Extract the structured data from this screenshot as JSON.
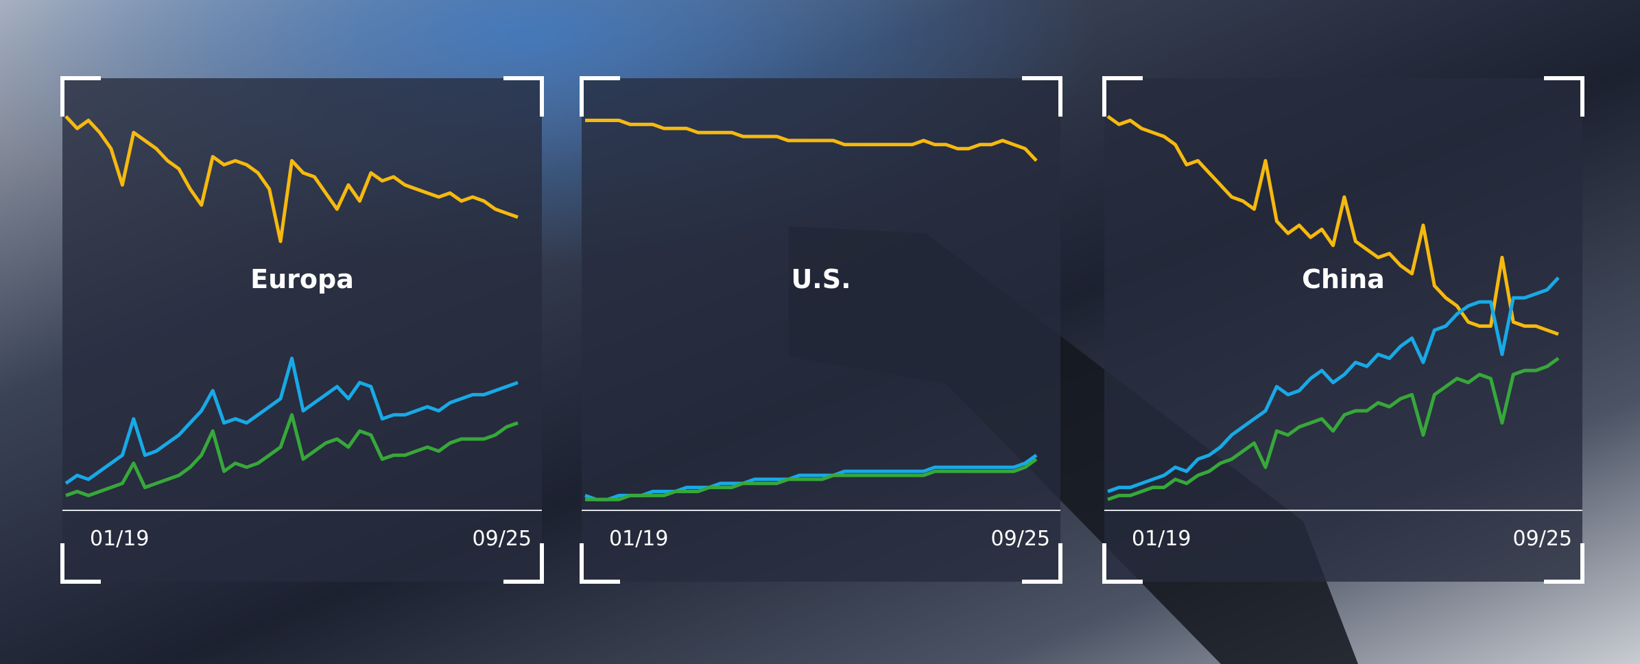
{
  "chart_data": [
    {
      "type": "line",
      "title": "Europa",
      "categories": [
        "01/19",
        null,
        null,
        null,
        null,
        null,
        null,
        null,
        null,
        null,
        null,
        null,
        null,
        null,
        null,
        null,
        null,
        null,
        null,
        null,
        null,
        null,
        null,
        null,
        null,
        null,
        null,
        null,
        null,
        null,
        null,
        null,
        null,
        null,
        null,
        null,
        null,
        null,
        null,
        null,
        "09/25"
      ],
      "ylim": [
        0,
        100
      ],
      "series": [
        {
          "color": "#f6b90f",
          "values": [
            97,
            94,
            96,
            93,
            89,
            80,
            93,
            91,
            89,
            86,
            84,
            79,
            75,
            87,
            85,
            86,
            85,
            83,
            79,
            66,
            86,
            83,
            82,
            78,
            74,
            80,
            76,
            83,
            81,
            82,
            80,
            79,
            78,
            77,
            78,
            76,
            77,
            76,
            74,
            73,
            72
          ]
        },
        {
          "color": "#18a9e6",
          "values": [
            6,
            8,
            7,
            9,
            11,
            13,
            22,
            13,
            14,
            16,
            18,
            21,
            24,
            29,
            21,
            22,
            21,
            23,
            25,
            27,
            37,
            24,
            26,
            28,
            30,
            27,
            31,
            30,
            22,
            23,
            23,
            24,
            25,
            24,
            26,
            27,
            28,
            28,
            29,
            30,
            31
          ]
        },
        {
          "color": "#37a83a",
          "values": [
            3,
            4,
            3,
            4,
            5,
            6,
            11,
            5,
            6,
            7,
            8,
            10,
            13,
            19,
            9,
            11,
            10,
            11,
            13,
            15,
            23,
            12,
            14,
            16,
            17,
            15,
            19,
            18,
            12,
            13,
            13,
            14,
            15,
            14,
            16,
            17,
            17,
            17,
            18,
            20,
            21
          ]
        }
      ]
    },
    {
      "type": "line",
      "title": "U.S.",
      "categories": [
        "01/19",
        null,
        null,
        null,
        null,
        null,
        null,
        null,
        null,
        null,
        null,
        null,
        null,
        null,
        null,
        null,
        null,
        null,
        null,
        null,
        null,
        null,
        null,
        null,
        null,
        null,
        null,
        null,
        null,
        null,
        null,
        null,
        null,
        null,
        null,
        null,
        null,
        null,
        null,
        null,
        "09/25"
      ],
      "ylim": [
        0,
        100
      ],
      "series": [
        {
          "color": "#f6b90f",
          "values": [
            96,
            96,
            96,
            96,
            95,
            95,
            95,
            94,
            94,
            94,
            93,
            93,
            93,
            93,
            92,
            92,
            92,
            92,
            91,
            91,
            91,
            91,
            91,
            90,
            90,
            90,
            90,
            90,
            90,
            90,
            91,
            90,
            90,
            89,
            89,
            90,
            90,
            91,
            90,
            89,
            86
          ]
        },
        {
          "color": "#18a9e6",
          "values": [
            3,
            2,
            2,
            3,
            3,
            3,
            4,
            4,
            4,
            5,
            5,
            5,
            6,
            6,
            6,
            7,
            7,
            7,
            7,
            8,
            8,
            8,
            8,
            9,
            9,
            9,
            9,
            9,
            9,
            9,
            9,
            10,
            10,
            10,
            10,
            10,
            10,
            10,
            10,
            11,
            13
          ]
        },
        {
          "color": "#37a83a",
          "values": [
            2,
            2,
            2,
            2,
            3,
            3,
            3,
            3,
            4,
            4,
            4,
            5,
            5,
            5,
            6,
            6,
            6,
            6,
            7,
            7,
            7,
            7,
            8,
            8,
            8,
            8,
            8,
            8,
            8,
            8,
            8,
            9,
            9,
            9,
            9,
            9,
            9,
            9,
            9,
            10,
            12
          ]
        }
      ]
    },
    {
      "type": "line",
      "title": "China",
      "categories": [
        "01/19",
        null,
        null,
        null,
        null,
        null,
        null,
        null,
        null,
        null,
        null,
        null,
        null,
        null,
        null,
        null,
        null,
        null,
        null,
        null,
        null,
        null,
        null,
        null,
        null,
        null,
        null,
        null,
        null,
        null,
        null,
        null,
        null,
        null,
        null,
        null,
        null,
        null,
        null,
        null,
        "09/25"
      ],
      "ylim": [
        0,
        100
      ],
      "series": [
        {
          "color": "#f6b90f",
          "values": [
            97,
            95,
            96,
            94,
            93,
            92,
            90,
            85,
            86,
            83,
            80,
            77,
            76,
            74,
            86,
            71,
            68,
            70,
            67,
            69,
            65,
            77,
            66,
            64,
            62,
            63,
            60,
            58,
            70,
            55,
            52,
            50,
            46,
            45,
            45,
            62,
            46,
            45,
            45,
            44,
            43
          ]
        },
        {
          "color": "#18a9e6",
          "values": [
            4,
            5,
            5,
            6,
            7,
            8,
            10,
            9,
            12,
            13,
            15,
            18,
            20,
            22,
            24,
            30,
            28,
            29,
            32,
            34,
            31,
            33,
            36,
            35,
            38,
            37,
            40,
            42,
            36,
            44,
            45,
            48,
            50,
            51,
            51,
            38,
            52,
            52,
            53,
            54,
            57
          ]
        },
        {
          "color": "#37a83a",
          "values": [
            2,
            3,
            3,
            4,
            5,
            5,
            7,
            6,
            8,
            9,
            11,
            12,
            14,
            16,
            10,
            19,
            18,
            20,
            21,
            22,
            19,
            23,
            24,
            24,
            26,
            25,
            27,
            28,
            18,
            28,
            30,
            32,
            31,
            33,
            32,
            21,
            33,
            34,
            34,
            35,
            37
          ]
        }
      ]
    }
  ]
}
